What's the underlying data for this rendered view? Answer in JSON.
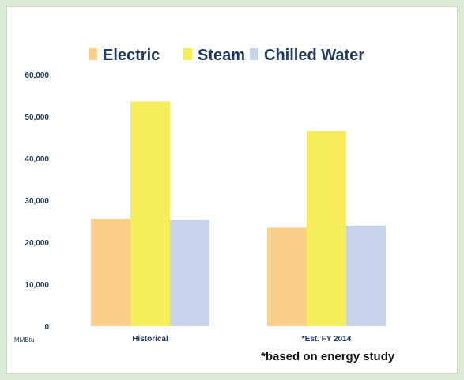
{
  "chart_data": {
    "type": "bar",
    "categories": [
      "Historical",
      "*Est. FY 2014"
    ],
    "series": [
      {
        "name": "Electric",
        "values": [
          25500,
          23500
        ],
        "color": "#f9cf8a"
      },
      {
        "name": "Steam",
        "values": [
          53500,
          46500
        ],
        "color": "#f6ed5b"
      },
      {
        "name": "Chilled Water",
        "values": [
          25300,
          24000
        ],
        "color": "#c7d3ea"
      }
    ],
    "y_ticks": [
      "0",
      "10,000",
      "20,000",
      "30,000",
      "40,000",
      "50,000",
      "60,000"
    ],
    "y_tick_values": [
      0,
      10000,
      20000,
      30000,
      40000,
      50000,
      60000
    ],
    "ylim": [
      0,
      60000
    ],
    "y_unit": "MMBtu",
    "legend_position": "top",
    "grid": false,
    "footnote": "*based on energy study"
  }
}
